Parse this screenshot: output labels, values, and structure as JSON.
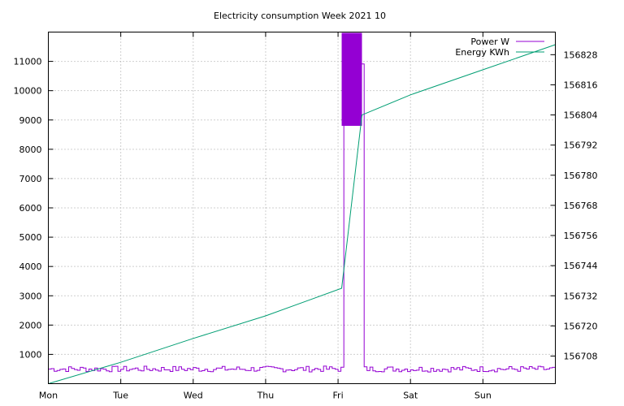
{
  "chart_data": {
    "type": "line",
    "title": "Electricity consumption Week 2021 10",
    "xlabel": "",
    "ylabel": "",
    "y2label": "",
    "x_tick_labels": [
      "Mon",
      "Tue",
      "Wed",
      "Thu",
      "Fri",
      "Sat",
      "Sun"
    ],
    "xlim_days": [
      0,
      7
    ],
    "ylim": [
      0,
      12000
    ],
    "y_ticks": [
      1000,
      2000,
      3000,
      4000,
      5000,
      6000,
      7000,
      8000,
      9000,
      10000,
      11000
    ],
    "y2lim": [
      156697,
      156837
    ],
    "y2_ticks": [
      156708,
      156720,
      156732,
      156744,
      156756,
      156768,
      156780,
      156792,
      156804,
      156816,
      156828
    ],
    "grid": true,
    "legend_position": "top-right",
    "series": [
      {
        "name": "Power W",
        "axis": "y",
        "color": "#9400d3",
        "baseline_low": 400,
        "baseline_high": 600,
        "spike_start_day": 4.05,
        "spike_end_day": 4.33,
        "spike_low": 8800,
        "spike_high": 12000
      },
      {
        "name": "Energy KWh",
        "axis": "y2",
        "color": "#009e73",
        "x": [
          0,
          1,
          2,
          3,
          4.05,
          4.33,
          5,
          6,
          7
        ],
        "values": [
          156697,
          156705.5,
          156715,
          156724,
          156735,
          156804,
          156812,
          156822,
          156832
        ]
      }
    ]
  }
}
